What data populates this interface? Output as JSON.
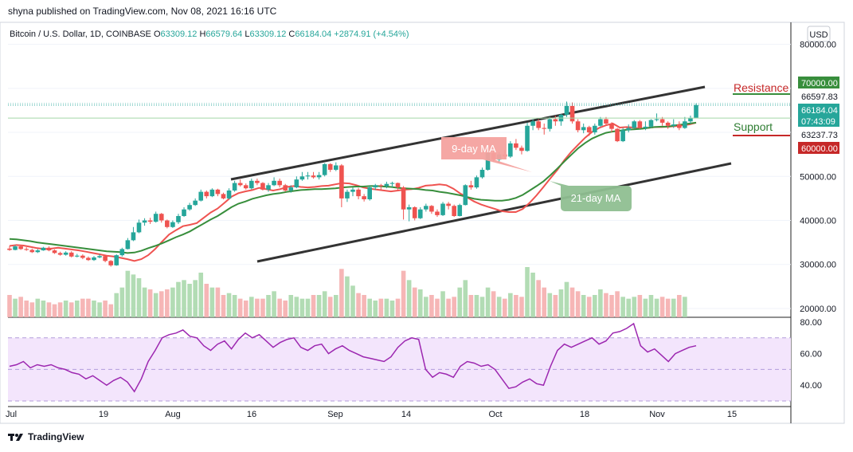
{
  "header": {
    "published": "shyna published on TradingView.com, Nov 08, 2021 16:16 UTC"
  },
  "symbol": {
    "name": "Bitcoin / U.S. Dollar, 1D, COINBASE",
    "o_label": "O",
    "o_value": "63309.12",
    "h_label": "H",
    "h_value": "66579.64",
    "l_label": "L",
    "l_value": "63309.12",
    "c_label": "C",
    "c_value": "66184.04",
    "change": "+2874.91 (+4.54%)"
  },
  "currency_button": "USD",
  "footer": {
    "brand": "TradingView"
  },
  "colors": {
    "up": "#26a69a",
    "down": "#ef5350",
    "ma9": "#ef5350",
    "ma21": "#388e3c",
    "rsi": "#9c27b0",
    "rsi_band": "#f3e5fc"
  },
  "annotations": {
    "ma9_label": "9-day MA",
    "ma21_label": "21-day MA",
    "resistance": "Resistance",
    "support": "Support"
  },
  "price_axis": {
    "ticks": [
      "80000.00",
      "70000.00",
      "66597.83",
      "66184.04",
      "07:43:09",
      "63237.73",
      "60000.00",
      "50000.00",
      "40000.00",
      "30000.00",
      "20000.00"
    ],
    "badges": [
      {
        "text": "70000.00",
        "kind": "green"
      },
      {
        "text": "66597.83",
        "kind": "plain"
      },
      {
        "text": "66184.04",
        "kind": "teal"
      },
      {
        "text": "07:43:09",
        "kind": "teal"
      },
      {
        "text": "63237.73",
        "kind": "plain"
      },
      {
        "text": "60000.00",
        "kind": "red"
      }
    ]
  },
  "rsi_axis": {
    "ticks": [
      "80.00",
      "60.00",
      "40.00"
    ]
  },
  "time_axis": {
    "ticks": [
      "Jul",
      "19",
      "Aug",
      "16",
      "Sep",
      "14",
      "Oct",
      "18",
      "Nov",
      "15"
    ]
  },
  "chart_data": {
    "type": "candlestick",
    "title": "Bitcoin / U.S. Dollar, 1D, COINBASE",
    "ylim": [
      18000,
      85000
    ],
    "rsi_ylim": [
      27,
      82
    ],
    "series": [
      {
        "name": "9-day MA",
        "values": [
          34200,
          34400,
          34300,
          34000,
          33700,
          33500,
          33600,
          33800,
          33600,
          33400,
          33200,
          32900,
          32600,
          32300,
          32000,
          31800,
          31500,
          31200,
          30800,
          31200,
          32100,
          33500,
          35200,
          36800,
          37800,
          38700,
          39000,
          39400,
          40600,
          41800,
          42700,
          44000,
          45400,
          46200,
          46600,
          46900,
          47400,
          47100,
          46800,
          47100,
          47600,
          47800,
          47600,
          47500,
          47600,
          47800,
          47900,
          48200,
          48500,
          48400,
          48000,
          47500,
          47200,
          47000,
          46800,
          46600,
          46800,
          47000,
          47100,
          47400,
          47900,
          48000,
          48200,
          48000,
          47200,
          46100,
          45200,
          44300,
          43600,
          43100,
          42600,
          42100,
          41900,
          41900,
          42600,
          44000,
          45700,
          47600,
          49600,
          51500,
          53700,
          55600,
          57200,
          58800,
          60100,
          61000,
          61600,
          62000,
          61100,
          61200,
          61100,
          60800,
          61000,
          61200,
          61200,
          61300,
          61400,
          61600,
          61800,
          62200
        ]
      },
      {
        "name": "21-day MA",
        "values": [
          35800,
          35700,
          35500,
          35300,
          35000,
          34800,
          34600,
          34400,
          34200,
          34000,
          33800,
          33600,
          33400,
          33200,
          33000,
          32900,
          32800,
          32600,
          32700,
          33100,
          33700,
          34200,
          34800,
          35500,
          36200,
          36800,
          37500,
          38400,
          39300,
          40200,
          41000,
          42000,
          43000,
          43800,
          44300,
          44900,
          45300,
          45700,
          46000,
          46200,
          46500,
          46700,
          46900,
          47000,
          47100,
          47100,
          47200,
          47300,
          47500,
          47600,
          47700,
          47700,
          47800,
          47800,
          47700,
          47600,
          47400,
          47300,
          47200,
          47100,
          46900,
          46800,
          46500,
          46300,
          46000,
          45700,
          45300,
          44900,
          44700,
          44600,
          44500,
          44500,
          44700,
          45100,
          45800,
          46800,
          47800,
          48900,
          50300,
          51800,
          53400,
          54900,
          56400,
          57600,
          58600,
          59300,
          59900,
          60200,
          60400,
          60600,
          60700,
          60800,
          61000,
          61200,
          61300,
          61300,
          61600,
          61800,
          62000,
          62200
        ]
      }
    ],
    "rsi": [
      52,
      53,
      55,
      51,
      53,
      52,
      53,
      51,
      50,
      48,
      47,
      44,
      46,
      43,
      40,
      43,
      45,
      42,
      36,
      44,
      55,
      62,
      70,
      72,
      73,
      75,
      71,
      70,
      65,
      62,
      66,
      68,
      63,
      69,
      73,
      70,
      72,
      68,
      64,
      67,
      69,
      70,
      64,
      62,
      65,
      66,
      60,
      63,
      65,
      62,
      60,
      58,
      57,
      56,
      55,
      58,
      64,
      68,
      70,
      69,
      50,
      45,
      48,
      47,
      45,
      52,
      55,
      54,
      52,
      53,
      50,
      44,
      38,
      39,
      42,
      44,
      41,
      40,
      52,
      62,
      66,
      64,
      66,
      68,
      70,
      66,
      68,
      73,
      74,
      76,
      79,
      65,
      61,
      63,
      59,
      55,
      60,
      62,
      64,
      65
    ],
    "candles": [
      [
        33600,
        33300,
        34200,
        33100
      ],
      [
        33300,
        34100,
        34400,
        33200
      ],
      [
        34100,
        33500,
        34300,
        33300
      ],
      [
        33500,
        33300,
        33900,
        33100
      ],
      [
        33300,
        32800,
        33600,
        32600
      ],
      [
        32800,
        33200,
        33500,
        32600
      ],
      [
        33200,
        33800,
        34000,
        33100
      ],
      [
        33800,
        33200,
        34100,
        33000
      ],
      [
        33200,
        32600,
        33400,
        32400
      ],
      [
        32600,
        32200,
        32900,
        32000
      ],
      [
        32200,
        32700,
        33000,
        32000
      ],
      [
        32700,
        31800,
        33000,
        31600
      ],
      [
        31800,
        32000,
        32400,
        31600
      ],
      [
        32000,
        31500,
        32300,
        31200
      ],
      [
        31500,
        31000,
        31800,
        30800
      ],
      [
        31000,
        31600,
        31900,
        30800
      ],
      [
        31600,
        31900,
        32400,
        31400
      ],
      [
        31900,
        30800,
        32100,
        30500
      ],
      [
        30800,
        29800,
        31000,
        29500
      ],
      [
        29800,
        32100,
        32300,
        29700
      ],
      [
        32100,
        33500,
        33800,
        31800
      ],
      [
        33500,
        35500,
        36000,
        33400
      ],
      [
        35500,
        37300,
        38500,
        35300
      ],
      [
        37300,
        39500,
        40200,
        37100
      ],
      [
        39500,
        40000,
        40500,
        38800
      ],
      [
        40000,
        39700,
        40600,
        39200
      ],
      [
        39700,
        41500,
        42000,
        39500
      ],
      [
        41500,
        40000,
        41700,
        39500
      ],
      [
        40000,
        38500,
        40200,
        38200
      ],
      [
        38500,
        39600,
        40000,
        38300
      ],
      [
        39600,
        41000,
        41500,
        39200
      ],
      [
        41000,
        42500,
        43000,
        40800
      ],
      [
        42500,
        43500,
        44000,
        42200
      ],
      [
        43500,
        44500,
        45000,
        43300
      ],
      [
        44500,
        46500,
        47000,
        44300
      ],
      [
        46500,
        45500,
        46800,
        45000
      ],
      [
        45500,
        47000,
        47300,
        45300
      ],
      [
        47000,
        46000,
        47200,
        45500
      ],
      [
        46000,
        45000,
        46300,
        44800
      ],
      [
        45000,
        46800,
        47300,
        44800
      ],
      [
        46800,
        48500,
        49000,
        46500
      ],
      [
        48500,
        48000,
        49300,
        47700
      ],
      [
        48000,
        47300,
        48400,
        47000
      ],
      [
        47300,
        49000,
        49500,
        47000
      ],
      [
        49000,
        48500,
        49500,
        48000
      ],
      [
        48500,
        47000,
        48700,
        46800
      ],
      [
        47000,
        48000,
        48500,
        46500
      ],
      [
        48000,
        49000,
        49800,
        47800
      ],
      [
        49000,
        48000,
        49500,
        47500
      ],
      [
        48000,
        46800,
        48300,
        46500
      ],
      [
        46800,
        47500,
        48000,
        46300
      ],
      [
        47500,
        49300,
        50000,
        47300
      ],
      [
        49300,
        50000,
        51000,
        49000
      ],
      [
        50000,
        50200,
        51000,
        49300
      ],
      [
        50200,
        49800,
        51000,
        49500
      ],
      [
        49800,
        50300,
        51000,
        49300
      ],
      [
        50300,
        52800,
        53000,
        50000
      ],
      [
        52800,
        51500,
        53000,
        51000
      ],
      [
        51500,
        52500,
        53200,
        51200
      ],
      [
        52500,
        45000,
        52800,
        43000
      ],
      [
        45000,
        46500,
        47000,
        44200
      ],
      [
        46500,
        47000,
        47500,
        45500
      ],
      [
        47000,
        45500,
        47400,
        44800
      ],
      [
        45500,
        44800,
        46000,
        44300
      ],
      [
        44800,
        47500,
        48000,
        44500
      ],
      [
        47500,
        48000,
        48300,
        46900
      ],
      [
        48000,
        47800,
        48300,
        46800
      ],
      [
        47800,
        48300,
        48800,
        47300
      ],
      [
        48300,
        48500,
        48800,
        47500
      ],
      [
        48500,
        47500,
        48600,
        47000
      ],
      [
        47500,
        42500,
        47800,
        40200
      ],
      [
        42500,
        43000,
        43600,
        39800
      ],
      [
        43000,
        40500,
        43200,
        40000
      ],
      [
        40500,
        42500,
        43000,
        40300
      ],
      [
        42500,
        43300,
        43800,
        42000
      ],
      [
        43300,
        42000,
        43500,
        41500
      ],
      [
        42000,
        41200,
        42500,
        40800
      ],
      [
        41200,
        43800,
        44200,
        41000
      ],
      [
        43800,
        43300,
        44200,
        42500
      ],
      [
        43300,
        41000,
        43600,
        40800
      ],
      [
        41000,
        43500,
        43800,
        40900
      ],
      [
        43500,
        48000,
        48200,
        43400
      ],
      [
        48000,
        47500,
        49000,
        47000
      ],
      [
        47500,
        49800,
        50200,
        47200
      ],
      [
        49800,
        51500,
        52000,
        49500
      ],
      [
        51500,
        55300,
        55800,
        51300
      ],
      [
        55300,
        53800,
        55800,
        53300
      ],
      [
        53800,
        55000,
        55500,
        53000
      ],
      [
        55000,
        54500,
        56000,
        54000
      ],
      [
        54500,
        57500,
        58000,
        54200
      ],
      [
        57500,
        56500,
        58500,
        56000
      ],
      [
        56500,
        55800,
        57000,
        55000
      ],
      [
        55800,
        61500,
        62200,
        55600
      ],
      [
        61500,
        62500,
        63000,
        60500
      ],
      [
        62500,
        61000,
        63000,
        60500
      ],
      [
        61000,
        60800,
        62000,
        59500
      ],
      [
        60800,
        63000,
        63500,
        60200
      ],
      [
        63000,
        62500,
        63800,
        61500
      ],
      [
        62500,
        64000,
        64200,
        61500
      ],
      [
        64000,
        66000,
        67000,
        63500
      ],
      [
        66000,
        62500,
        66800,
        62000
      ],
      [
        62500,
        60500,
        63000,
        60000
      ],
      [
        60500,
        61200,
        62000,
        59800
      ],
      [
        61200,
        60000,
        61500,
        59200
      ],
      [
        60000,
        61500,
        62000,
        59500
      ],
      [
        61500,
        63000,
        63500,
        61200
      ],
      [
        63000,
        62000,
        63500,
        61500
      ],
      [
        62000,
        60800,
        62300,
        60000
      ],
      [
        60800,
        58000,
        61000,
        57800
      ],
      [
        58000,
        60500,
        61000,
        57800
      ],
      [
        60500,
        61000,
        61800,
        60000
      ],
      [
        61000,
        62500,
        62800,
        60800
      ],
      [
        62500,
        61000,
        62800,
        60800
      ],
      [
        61000,
        61300,
        62500,
        60500
      ],
      [
        61300,
        62800,
        63000,
        61000
      ],
      [
        62800,
        63000,
        64300,
        62500
      ],
      [
        63000,
        62200,
        63500,
        61500
      ],
      [
        62200,
        61500,
        62500,
        60800
      ],
      [
        61500,
        61800,
        63000,
        61000
      ],
      [
        61800,
        61000,
        62500,
        60500
      ],
      [
        61000,
        62500,
        63500,
        60800
      ],
      [
        62500,
        63300,
        63800,
        62000
      ],
      [
        63300,
        66200,
        66580,
        63300
      ]
    ],
    "volume": [
      1.2,
      1.0,
      1.1,
      0.9,
      0.8,
      1.0,
      0.9,
      0.8,
      0.7,
      0.8,
      0.9,
      0.8,
      0.9,
      1.0,
      1.0,
      0.9,
      0.8,
      0.9,
      0.7,
      1.3,
      1.6,
      2.5,
      2.3,
      2.1,
      1.6,
      1.5,
      1.3,
      1.4,
      1.5,
      1.6,
      1.9,
      2.0,
      1.8,
      2.0,
      2.4,
      1.8,
      1.6,
      1.6,
      1.2,
      1.3,
      1.2,
      1.0,
      0.9,
      1.1,
      1.0,
      1.0,
      1.2,
      1.4,
      1.0,
      0.9,
      1.2,
      1.1,
      1.0,
      1.0,
      1.2,
      1.2,
      1.4,
      1.1,
      1.2,
      2.6,
      2.2,
      1.7,
      1.3,
      1.2,
      1.0,
      0.9,
      1.0,
      1.0,
      0.9,
      1.0,
      2.5,
      2.0,
      1.6,
      1.5,
      1.1,
      1.2,
      1.0,
      1.4,
      1.0,
      1.1,
      1.6,
      2.0,
      1.2,
      1.2,
      1.1,
      1.6,
      1.4,
      1.1,
      1.0,
      1.3,
      1.2,
      1.1,
      2.7,
      2.4,
      2.0,
      1.6,
      1.3,
      1.2,
      1.5,
      1.9,
      1.6,
      1.4,
      1.2,
      1.1,
      1.2,
      1.5,
      1.3,
      1.2,
      1.4,
      1.1,
      1.0,
      1.1,
      1.2,
      1.0,
      1.2,
      1.0,
      1.1,
      1.0,
      1.0,
      1.2,
      1.1
    ]
  }
}
